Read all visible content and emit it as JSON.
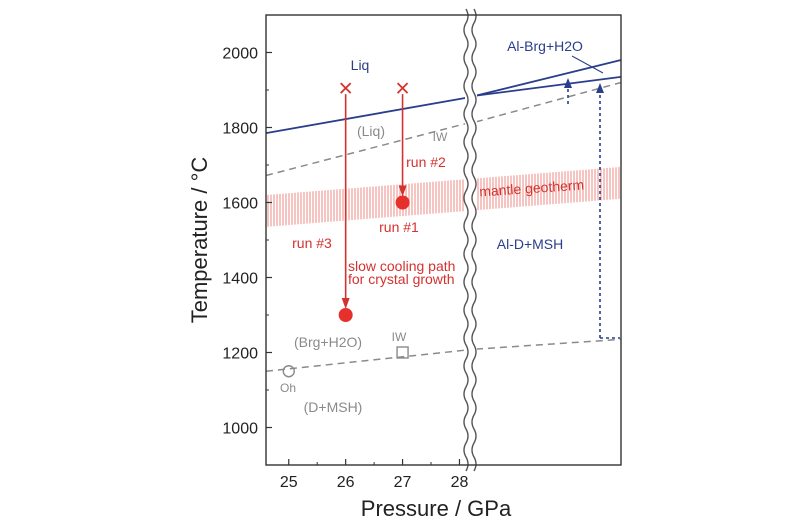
{
  "chart_data": {
    "type": "line",
    "xlabel": "Pressure / GPa",
    "ylabel": "Temperature / °C",
    "xlim": [
      24.6,
      28.3
    ],
    "ylim": [
      900,
      2100
    ],
    "x_ticks": [
      25,
      26,
      27,
      28
    ],
    "y_ticks": [
      1000,
      1200,
      1400,
      1600,
      1800,
      2000
    ],
    "axis_break_after_x": 28.15,
    "series": [
      {
        "name": "Liq solidus",
        "style": "solid",
        "color": "#2a3e8c",
        "points": [
          [
            24.6,
            1785
          ],
          [
            28.15,
            1880
          ]
        ]
      },
      {
        "name": "IW upper",
        "style": "dashed",
        "color": "#8a8a8a",
        "points": [
          [
            24.6,
            1672
          ],
          [
            28.15,
            1812
          ]
        ]
      },
      {
        "name": "IW lower",
        "style": "dashed",
        "color": "#8a8a8a",
        "points": [
          [
            24.6,
            1150
          ],
          [
            28.15,
            1207
          ]
        ]
      }
    ],
    "runs": [
      {
        "label": "run #2",
        "start": [
          27.0,
          1905
        ],
        "end": [
          27.0,
          1600
        ]
      },
      {
        "label": "run #3",
        "start": [
          26.0,
          1905
        ],
        "end": [
          26.0,
          1300
        ]
      }
    ],
    "start_markers": [
      [
        26.0,
        1905
      ],
      [
        27.0,
        1905
      ]
    ],
    "end_markers": [
      [
        27.0,
        1600
      ],
      [
        26.0,
        1300
      ]
    ],
    "open_markers": [
      {
        "shape": "circle",
        "label": "Oh",
        "x": 25.0,
        "y": 1150
      },
      {
        "shape": "square",
        "label": "IW",
        "x": 27.0,
        "y": 1200
      }
    ],
    "annotations": [
      {
        "text": "Liq",
        "color": "#2a3e8c"
      },
      {
        "text": "(Liq)",
        "color": "#8a8a8a"
      },
      {
        "text": "IW",
        "color": "#8a8a8a"
      },
      {
        "text": "run #2",
        "color": "#d3322f"
      },
      {
        "text": "run #1",
        "color": "#d3322f"
      },
      {
        "text": "run #3",
        "color": "#d3322f"
      },
      {
        "text": "mantle geotherm",
        "color": "#d3322f"
      },
      {
        "text": "slow cooling path",
        "color": "#d3322f"
      },
      {
        "text": "for crystal growth",
        "color": "#d3322f"
      },
      {
        "text": "(Brg+H2O)",
        "color": "#8a8a8a"
      },
      {
        "text": "(D+MSH)",
        "color": "#8a8a8a"
      },
      {
        "text": "Al-Brg+H2O",
        "color": "#2a3e8c"
      },
      {
        "text": "Al-D+MSH",
        "color": "#2a3e8c"
      }
    ],
    "right_panel": {
      "title": "Al-Brg+H2O",
      "region_label": "Al-D+MSH",
      "upper_line_end_temp": 1980,
      "lower_line_end_temp": 1935,
      "iw_dashed_end_temp": 1920,
      "iw_lower_end_temp": 1235
    },
    "geotherm": {
      "label": "mantle geotherm",
      "lower_left": 1535,
      "upper_left": 1620,
      "lower_right": 1610,
      "upper_right": 1695
    }
  }
}
